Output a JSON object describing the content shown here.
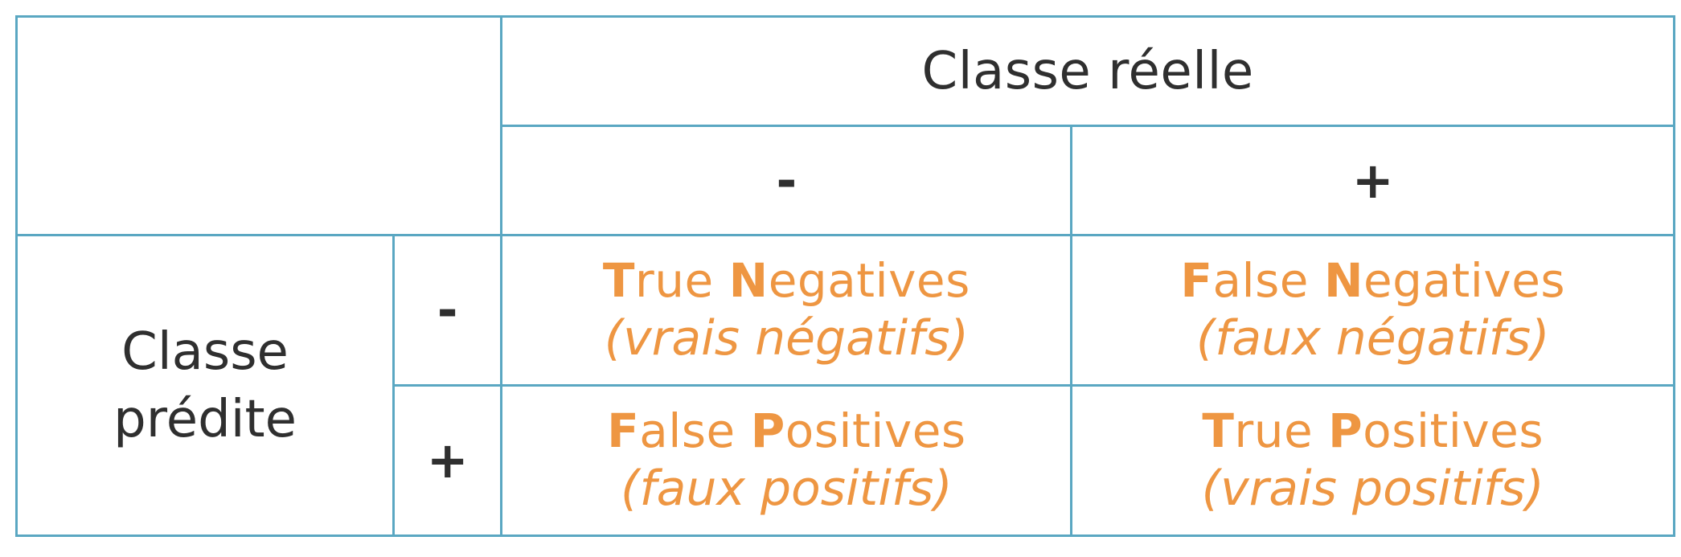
{
  "colors": {
    "border": "#5aa7c2",
    "text_dark": "#2f2f2f",
    "accent_orange": "#ee9642",
    "background": "#ffffff"
  },
  "matrix": {
    "actual_class_label": "Classe réelle",
    "predicted_class_label": {
      "line1": "Classe",
      "line2": "prédite"
    },
    "column_signs": [
      "-",
      "+"
    ],
    "row_signs": [
      "-",
      "+"
    ],
    "cells": {
      "tn": {
        "initial1": "T",
        "rest1": "rue ",
        "initial2": "N",
        "rest2": "egatives",
        "subtitle": "(vrais négatifs)"
      },
      "fn": {
        "initial1": "F",
        "rest1": "alse ",
        "initial2": "N",
        "rest2": "egatives",
        "subtitle": "(faux négatifs)"
      },
      "fp": {
        "initial1": "F",
        "rest1": "alse ",
        "initial2": "P",
        "rest2": "ositives",
        "subtitle": "(faux positifs)"
      },
      "tp": {
        "initial1": "T",
        "rest1": "rue ",
        "initial2": "P",
        "rest2": "ositives",
        "subtitle": "(vrais positifs)"
      }
    }
  }
}
